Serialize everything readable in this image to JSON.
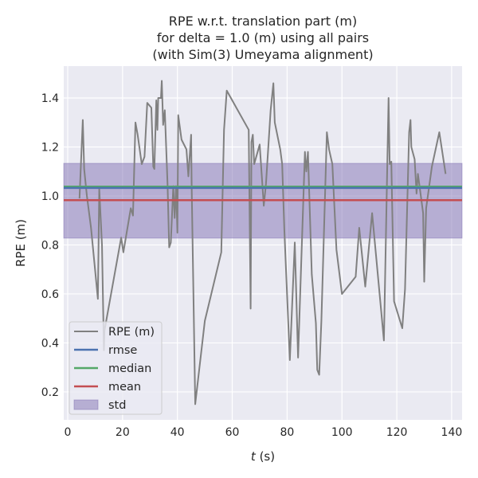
{
  "chart_data": {
    "type": "line",
    "title": [
      "RPE w.r.t. translation part (m)",
      "for delta = 1.0 (m) using all pairs",
      "(with Sim(3) Umeyama alignment)"
    ],
    "xlabel_italic": "t",
    "xlabel_rest": " (s)",
    "ylabel": "RPE (m)",
    "xlim": [
      -1.45,
      143.8
    ],
    "ylim": [
      0.086,
      1.53
    ],
    "xticks": [
      0,
      20,
      40,
      60,
      80,
      100,
      120,
      140
    ],
    "yticks": [
      0.2,
      0.4,
      0.6,
      0.8,
      1.0,
      1.2,
      1.4
    ],
    "grid": true,
    "legend_position": "lower-left",
    "series": [
      {
        "name": "RPE (m)",
        "color": "#808080",
        "x": [
          4.3,
          5.5,
          6,
          7,
          8.5,
          11,
          11.5,
          12.5,
          13.2,
          13.4,
          19.5,
          20.3,
          23,
          23.8,
          24.7,
          25.5,
          27,
          28,
          29,
          30.5,
          31.2,
          31.6,
          32.3,
          32.7,
          33,
          34,
          34.3,
          34.8,
          35.4,
          36.4,
          37,
          37.6,
          38.5,
          39,
          39.5,
          40,
          40.3,
          41.5,
          43.3,
          44,
          45,
          45.2,
          46.5,
          50,
          56,
          57,
          58,
          66,
          66.7,
          67,
          67.5,
          68,
          70,
          71.5,
          72.3,
          74,
          75,
          75.5,
          77.5,
          78.2,
          79,
          81,
          82.8,
          84,
          86.5,
          87,
          87.6,
          89,
          90.5,
          91,
          91.7,
          92.5,
          94.5,
          95.3,
          96.5,
          98,
          100,
          105,
          106.3,
          108.5,
          111,
          115.3,
          117,
          117.4,
          118,
          119,
          122,
          123,
          124.5,
          125,
          125.3,
          126.5,
          127.2,
          127.7,
          129.6,
          130,
          130.7,
          132.8,
          135.5,
          137.8
        ],
        "y": [
          0.99,
          1.31,
          1.11,
          1.0,
          0.87,
          0.58,
          1.03,
          0.8,
          0.37,
          0.45,
          0.83,
          0.77,
          0.95,
          0.92,
          1.3,
          1.25,
          1.13,
          1.16,
          1.38,
          1.36,
          1.12,
          1.11,
          1.39,
          1.27,
          1.4,
          1.4,
          1.47,
          1.29,
          1.35,
          1.05,
          0.79,
          0.81,
          1.04,
          0.91,
          1.04,
          0.85,
          1.33,
          1.23,
          1.19,
          1.08,
          1.25,
          1.04,
          0.15,
          0.49,
          0.77,
          1.27,
          1.43,
          1.27,
          0.54,
          1.22,
          1.25,
          1.13,
          1.21,
          0.96,
          1.05,
          1.35,
          1.46,
          1.3,
          1.19,
          1.13,
          0.86,
          0.33,
          0.81,
          0.34,
          1.18,
          1.1,
          1.18,
          0.68,
          0.48,
          0.29,
          0.27,
          0.49,
          1.26,
          1.19,
          1.13,
          0.78,
          0.6,
          0.67,
          0.87,
          0.63,
          0.93,
          0.41,
          1.4,
          1.13,
          1.14,
          0.57,
          0.46,
          0.62,
          1.26,
          1.31,
          1.2,
          1.15,
          1.01,
          1.09,
          0.93,
          0.65,
          0.95,
          1.12,
          1.26,
          1.09
        ]
      },
      {
        "name": "rmse",
        "color": "#4c72b0",
        "value": 1.033
      },
      {
        "name": "median",
        "color": "#55a868",
        "value": 1.038
      },
      {
        "name": "mean",
        "color": "#c44e52",
        "value": 0.983
      },
      {
        "name": "std",
        "color": "#8172b3",
        "range": [
          0.828,
          1.133
        ]
      }
    ]
  }
}
